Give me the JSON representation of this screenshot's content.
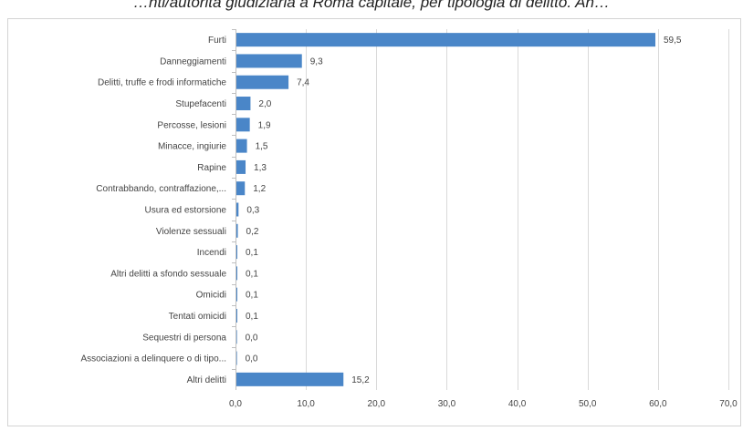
{
  "title": "…nti/autorità giudiziaria a Roma capitale, per tipologia di delitto. An…",
  "chart_data": {
    "type": "bar",
    "orientation": "horizontal",
    "categories": [
      "Furti",
      "Danneggiamenti",
      "Delitti, truffe e frodi informatiche",
      "Stupefacenti",
      "Percosse, lesioni",
      "Minacce, ingiurie",
      "Rapine",
      "Contrabbando, contraffazione,...",
      "Usura ed estorsione",
      "Violenze sessuali",
      "Incendi",
      "Altri delitti a sfondo sessuale",
      "Omicidi",
      "Tentati omicidi",
      "Sequestri di persona",
      "Associazioni a delinquere o di tipo...",
      "Altri delitti"
    ],
    "values": [
      59.5,
      9.3,
      7.4,
      2.0,
      1.9,
      1.5,
      1.3,
      1.2,
      0.3,
      0.2,
      0.1,
      0.1,
      0.1,
      0.1,
      0.0,
      0.0,
      15.2
    ],
    "value_labels": [
      "59,5",
      "9,3",
      "7,4",
      "2,0",
      "1,9",
      "1,5",
      "1,3",
      "1,2",
      "0,3",
      "0,2",
      "0,1",
      "0,1",
      "0,1",
      "0,1",
      "0,0",
      "0,0",
      "15,2"
    ],
    "xlim": [
      0,
      70
    ],
    "x_ticks": [
      0,
      10,
      20,
      30,
      40,
      50,
      60,
      70
    ],
    "x_tick_labels": [
      "0,0",
      "10,0",
      "20,0",
      "30,0",
      "40,0",
      "50,0",
      "60,0",
      "70,0"
    ],
    "xlabel": "",
    "ylabel": "",
    "grid": true,
    "legend": "none",
    "bar_color": "#4a86c8"
  }
}
